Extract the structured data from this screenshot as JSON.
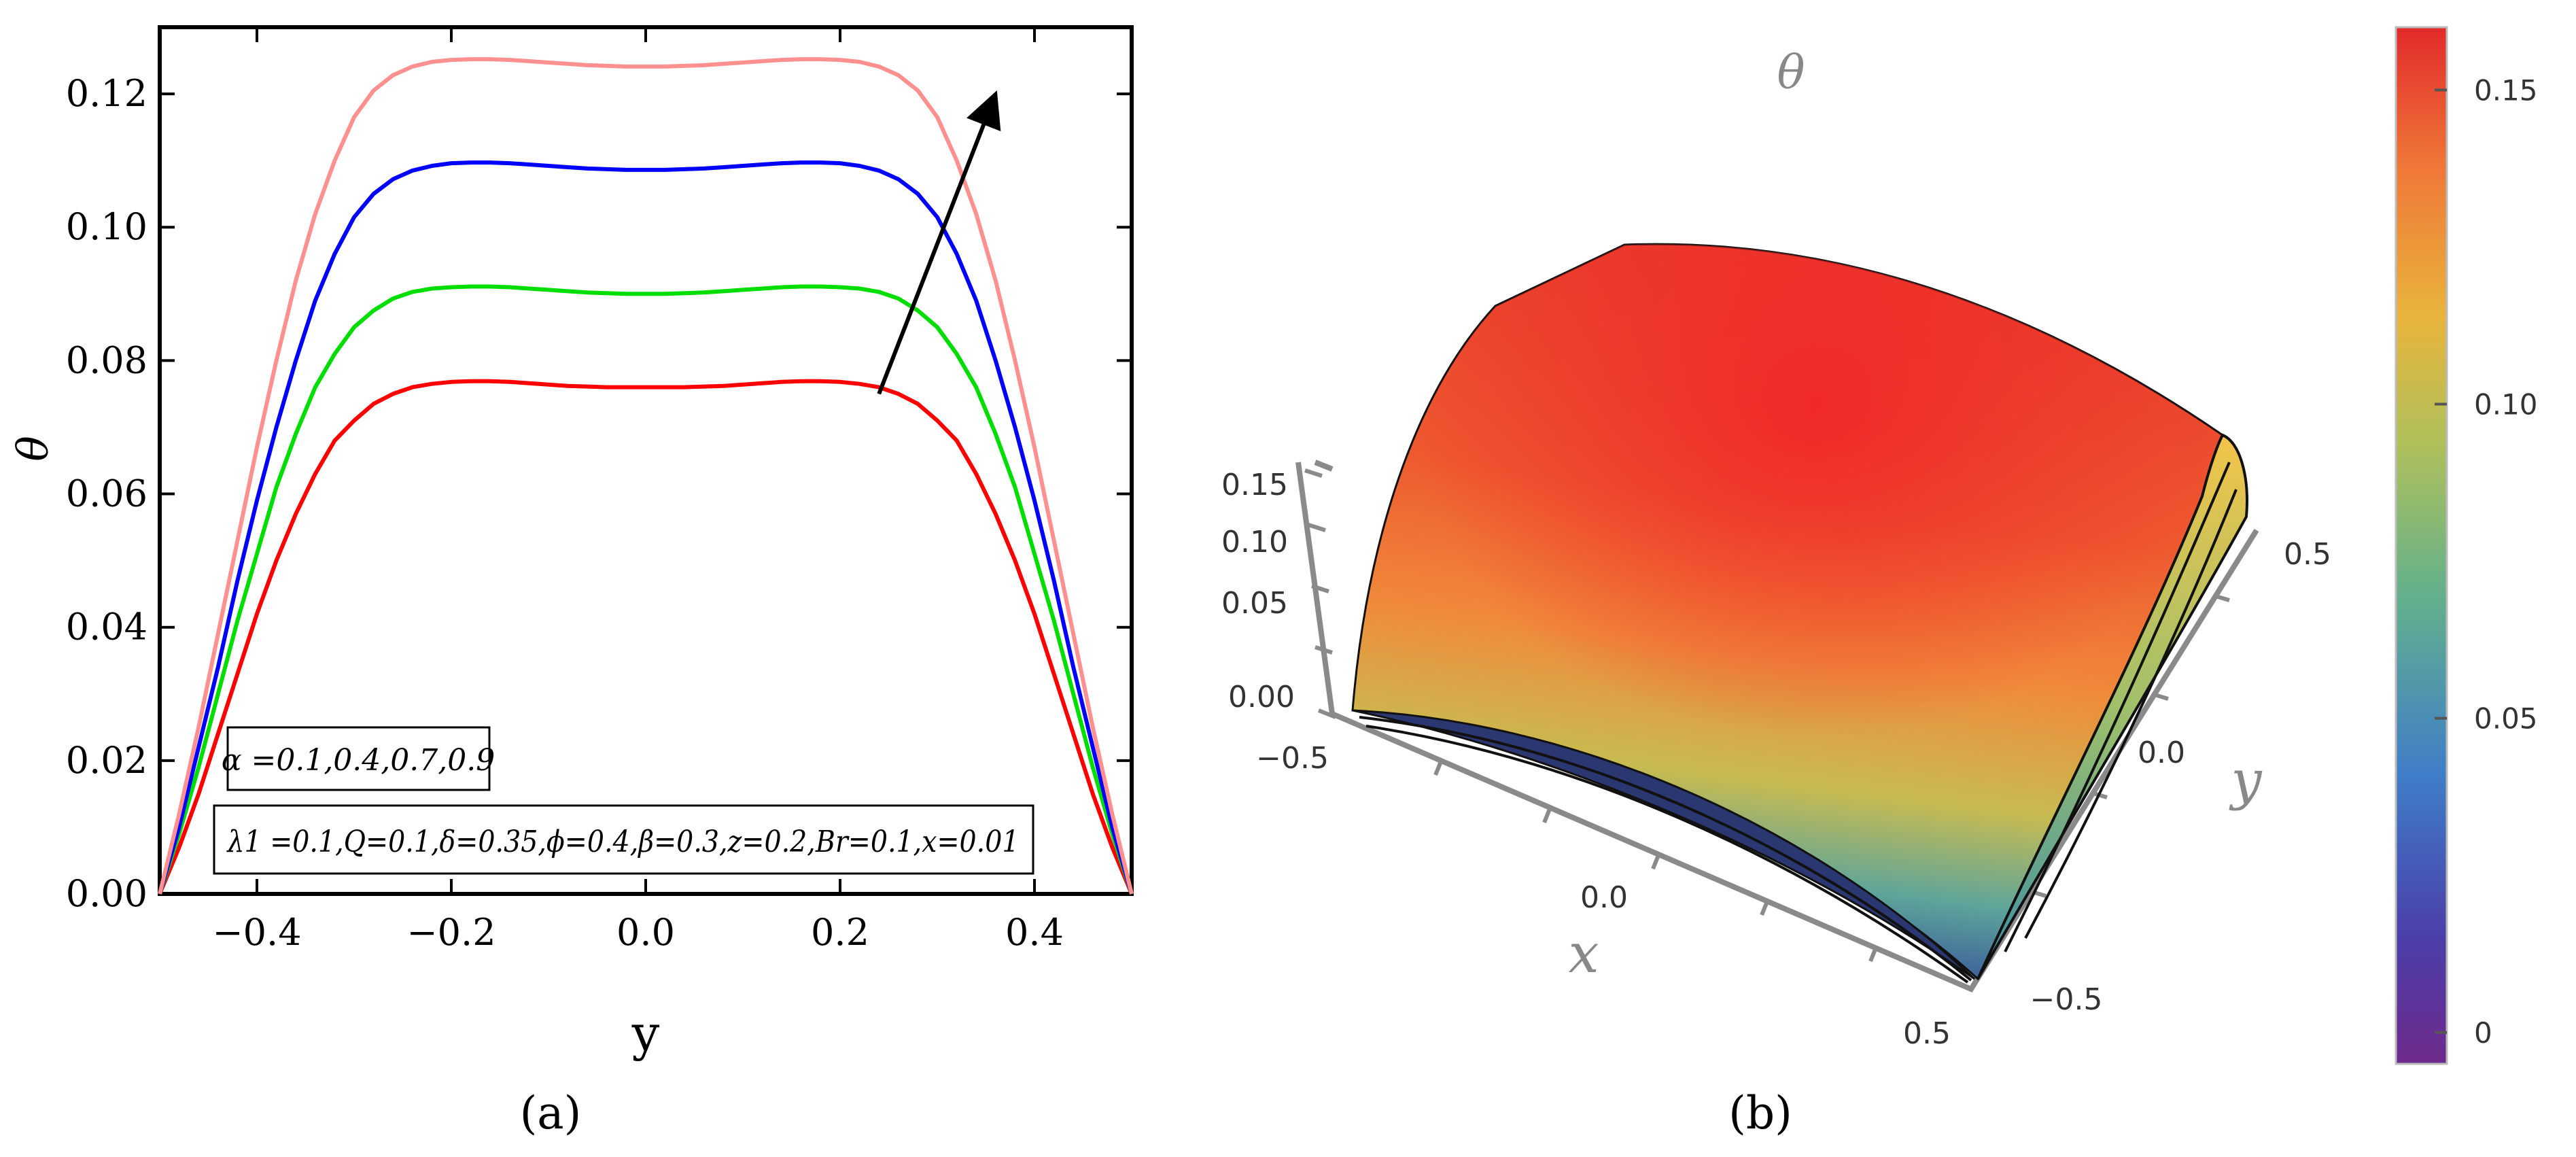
{
  "chart_data": [
    {
      "type": "line",
      "panel_label": "(a)",
      "xlabel": "y",
      "ylabel": "θ",
      "xlim": [
        -0.5,
        0.5
      ],
      "ylim": [
        0,
        0.13
      ],
      "xticks": [
        "−0.4",
        "−0.2",
        "0.0",
        "0.2",
        "0.4"
      ],
      "xtick_values": [
        -0.4,
        -0.2,
        0.0,
        0.2,
        0.4
      ],
      "yticks": [
        "0.00",
        "0.02",
        "0.04",
        "0.06",
        "0.08",
        "0.10",
        "0.12"
      ],
      "ytick_values": [
        0.0,
        0.02,
        0.04,
        0.06,
        0.08,
        0.1,
        0.12
      ],
      "x": [
        -0.5,
        -0.48,
        -0.46,
        -0.44,
        -0.42,
        -0.4,
        -0.38,
        -0.36,
        -0.34,
        -0.32,
        -0.3,
        -0.28,
        -0.26,
        -0.24,
        -0.22,
        -0.2,
        -0.18,
        -0.16,
        -0.14,
        -0.12,
        -0.1,
        -0.08,
        -0.06,
        -0.04,
        -0.02,
        0.0,
        0.02,
        0.04,
        0.06,
        0.08,
        0.1,
        0.12,
        0.14,
        0.16,
        0.18,
        0.2,
        0.22,
        0.24,
        0.26,
        0.28,
        0.3,
        0.32,
        0.34,
        0.36,
        0.38,
        0.4,
        0.42,
        0.44,
        0.46,
        0.48,
        0.5
      ],
      "series": [
        {
          "color": "#ff0000",
          "values": [
            0.0,
            0.007,
            0.015,
            0.024,
            0.033,
            0.042,
            0.05,
            0.057,
            0.063,
            0.068,
            0.071,
            0.0735,
            0.075,
            0.076,
            0.0765,
            0.0768,
            0.0769,
            0.0769,
            0.0768,
            0.0766,
            0.0764,
            0.0762,
            0.0761,
            0.076,
            0.076,
            0.076,
            0.076,
            0.076,
            0.0761,
            0.0762,
            0.0764,
            0.0766,
            0.0768,
            0.0769,
            0.0769,
            0.0768,
            0.0765,
            0.076,
            0.075,
            0.0735,
            0.071,
            0.068,
            0.063,
            0.057,
            0.05,
            0.042,
            0.033,
            0.024,
            0.015,
            0.007,
            0.0
          ]
        },
        {
          "color": "#00dd00",
          "values": [
            0.0,
            0.009,
            0.019,
            0.03,
            0.041,
            0.051,
            0.061,
            0.069,
            0.076,
            0.081,
            0.085,
            0.0875,
            0.0893,
            0.0903,
            0.0908,
            0.091,
            0.0911,
            0.0911,
            0.091,
            0.0908,
            0.0906,
            0.0904,
            0.0902,
            0.0901,
            0.09,
            0.09,
            0.09,
            0.0901,
            0.0902,
            0.0904,
            0.0906,
            0.0908,
            0.091,
            0.0911,
            0.0911,
            0.091,
            0.0908,
            0.0903,
            0.0893,
            0.0875,
            0.085,
            0.081,
            0.076,
            0.069,
            0.061,
            0.051,
            0.041,
            0.03,
            0.019,
            0.009,
            0.0
          ]
        },
        {
          "color": "#0000ff",
          "values": [
            0.0,
            0.01,
            0.022,
            0.034,
            0.047,
            0.059,
            0.07,
            0.08,
            0.089,
            0.096,
            0.1015,
            0.105,
            0.1072,
            0.1085,
            0.1092,
            0.1096,
            0.1097,
            0.1097,
            0.1096,
            0.1094,
            0.1092,
            0.109,
            0.1088,
            0.1087,
            0.1086,
            0.1086,
            0.1086,
            0.1087,
            0.1088,
            0.109,
            0.1092,
            0.1094,
            0.1096,
            0.1097,
            0.1097,
            0.1096,
            0.1092,
            0.1085,
            0.1072,
            0.105,
            0.1015,
            0.096,
            0.089,
            0.08,
            0.07,
            0.059,
            0.047,
            0.034,
            0.022,
            0.01,
            0.0
          ]
        },
        {
          "color": "#ff9090",
          "values": [
            0.0,
            0.012,
            0.025,
            0.039,
            0.053,
            0.067,
            0.08,
            0.092,
            0.102,
            0.11,
            0.1165,
            0.1205,
            0.1228,
            0.1241,
            0.1248,
            0.1251,
            0.1252,
            0.1252,
            0.1251,
            0.1249,
            0.1247,
            0.1245,
            0.1243,
            0.1242,
            0.1241,
            0.1241,
            0.1241,
            0.1242,
            0.1243,
            0.1245,
            0.1247,
            0.1249,
            0.1251,
            0.1252,
            0.1252,
            0.1251,
            0.1248,
            0.1241,
            0.1228,
            0.1205,
            0.1165,
            0.11,
            0.102,
            0.092,
            0.08,
            0.067,
            0.053,
            0.039,
            0.025,
            0.012,
            0.0
          ]
        }
      ],
      "arrow": {
        "from": [
          0.24,
          0.075
        ],
        "to": [
          0.36,
          0.12
        ]
      },
      "annotations": [
        "α =0.1,0.4,0.7,0.9",
        "λ1 =0.1,Q=0.1,δ=0.35,ϕ=0.4,β=0.3,z=0.2,Br=0.1,x=0.01"
      ]
    },
    {
      "type": "surface3d",
      "panel_label": "(b)",
      "title": "θ",
      "xlabel": "x",
      "ylabel": "y",
      "xticks": [
        "−0.5",
        "0.0",
        "0.5"
      ],
      "yticks": [
        "−0.5",
        "0.0",
        "0.5"
      ],
      "zticks": [
        "0.00",
        "0.05",
        "0.10",
        "0.15"
      ],
      "colorbar_ticks": [
        "0",
        "0.05",
        "0.10",
        "0.15"
      ],
      "colorbar_tick_values": [
        0,
        0.05,
        0.1,
        0.15
      ],
      "colorbar_range": [
        -0.005,
        0.16
      ]
    }
  ]
}
